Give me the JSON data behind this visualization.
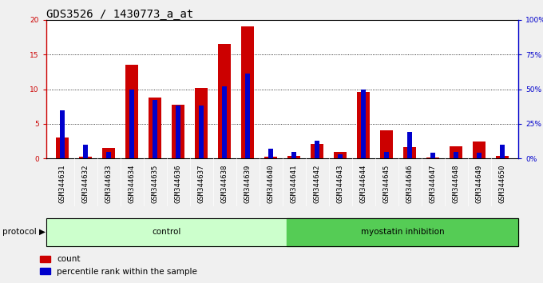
{
  "title": "GDS3526 / 1430773_a_at",
  "samples": [
    "GSM344631",
    "GSM344632",
    "GSM344633",
    "GSM344634",
    "GSM344635",
    "GSM344636",
    "GSM344637",
    "GSM344638",
    "GSM344639",
    "GSM344640",
    "GSM344641",
    "GSM344642",
    "GSM344643",
    "GSM344644",
    "GSM344645",
    "GSM344646",
    "GSM344647",
    "GSM344648",
    "GSM344649",
    "GSM344650"
  ],
  "count": [
    3.0,
    0.3,
    1.5,
    13.5,
    8.8,
    7.8,
    10.2,
    16.5,
    19.0,
    0.3,
    0.4,
    2.1,
    0.9,
    9.6,
    4.1,
    1.6,
    0.2,
    1.8,
    2.5,
    0.4
  ],
  "percentile": [
    35,
    10,
    5,
    50,
    42,
    38,
    38,
    52,
    61,
    7,
    5,
    13,
    3,
    50,
    5,
    19,
    4,
    5,
    4,
    10
  ],
  "count_color": "#cc0000",
  "percentile_color": "#0000cc",
  "ylim_left": [
    0,
    20
  ],
  "ylim_right": [
    0,
    100
  ],
  "yticks_left": [
    0,
    5,
    10,
    15,
    20
  ],
  "yticks_right": [
    0,
    25,
    50,
    75,
    100
  ],
  "ytick_labels_right": [
    "0%",
    "25%",
    "50%",
    "75%",
    "100%"
  ],
  "control_count": 10,
  "control_label": "control",
  "myostatin_label": "myostatin inhibition",
  "protocol_label": "protocol",
  "legend_count": "count",
  "legend_percentile": "percentile rank within the sample",
  "red_bar_width": 0.55,
  "blue_bar_width": 0.18,
  "control_bg": "#ccffcc",
  "myostatin_bg": "#55cc55",
  "plot_bg": "#ffffff",
  "axis_bg": "#cccccc",
  "title_fontsize": 10,
  "tick_fontsize": 6.5,
  "label_fontsize": 7.5
}
